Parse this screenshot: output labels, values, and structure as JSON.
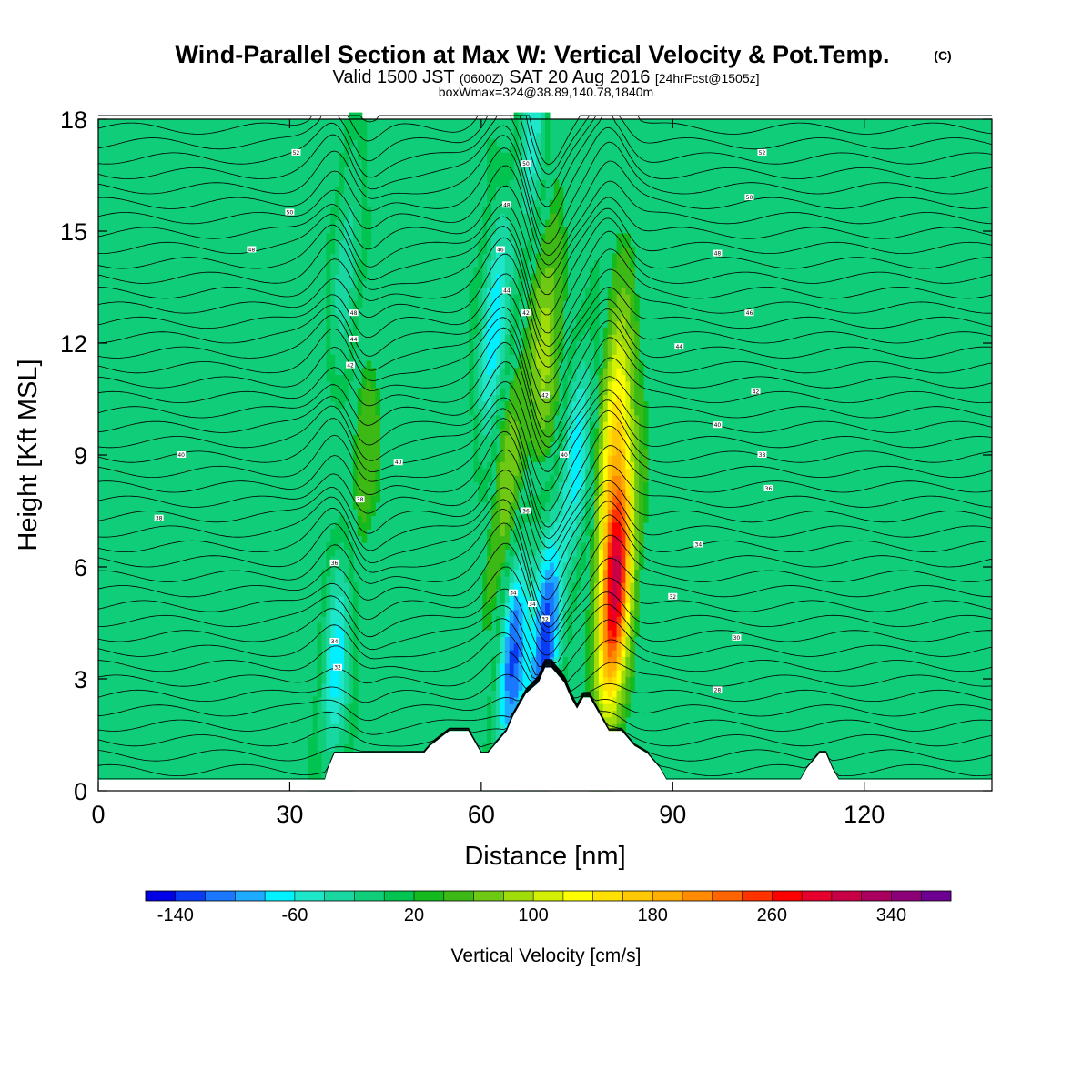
{
  "chart_data": {
    "type": "heatmap",
    "title_main": "Wind-Parallel Section at Max W: Vertical Velocity & Pot.Temp.",
    "copyright_mark": "(C)",
    "subtitle_part1": "Valid 1500 JST ",
    "subtitle_utc": "(0600Z)",
    "subtitle_part2": " SAT 20 Aug 2016 ",
    "subtitle_fcst": "[24hrFcst@1505z]",
    "subtitle_box": "boxWmax=324@38.89,140.78,1840m",
    "xlabel": "Distance [nm]",
    "ylabel": "Height [Kft MSL]",
    "xlim": [
      0,
      140
    ],
    "ylim": [
      0,
      18
    ],
    "x_ticks": [
      0,
      30,
      60,
      90,
      120
    ],
    "x_tick_labels": [
      "0",
      "30",
      "60",
      "90",
      "120"
    ],
    "y_ticks": [
      0,
      3,
      6,
      9,
      12,
      15,
      18
    ],
    "y_tick_labels": [
      "0",
      "3",
      "6",
      "9",
      "12",
      "15",
      "18"
    ],
    "background_w": 25,
    "updraft_cells": [
      {
        "x": 81,
        "y": 5.5,
        "peak": 300
      },
      {
        "x": 81,
        "y": 9.8,
        "peak": 140
      },
      {
        "x": 70,
        "y": 12,
        "peak": 90
      },
      {
        "x": 64,
        "y": 8,
        "peak": 75
      },
      {
        "x": 41,
        "y": 8.5,
        "peak": 55
      }
    ],
    "downdraft_cells": [
      {
        "x": 70,
        "y": 4,
        "peak": -130
      },
      {
        "x": 65,
        "y": 3.5,
        "peak": -120
      },
      {
        "x": 37.5,
        "y": 3.5,
        "peak": -70
      },
      {
        "x": 62,
        "y": 12.5,
        "peak": -80
      },
      {
        "x": 75,
        "y": 9,
        "peak": -65
      },
      {
        "x": 68,
        "y": 17.5,
        "peak": -45
      },
      {
        "x": 39,
        "y": 14,
        "peak": -35
      }
    ],
    "terrain": {
      "x": [
        0,
        35.5,
        36,
        37,
        51,
        52,
        55,
        58,
        59,
        60,
        61,
        64,
        65,
        66,
        67,
        69,
        70,
        71,
        73,
        74,
        75,
        76,
        77,
        78,
        79,
        80,
        82,
        83,
        84,
        86,
        87,
        88,
        89,
        90,
        110,
        111,
        113,
        114,
        115,
        116,
        117,
        140
      ],
      "h": [
        0.3,
        0.3,
        0.6,
        1.0,
        1.0,
        1.2,
        1.6,
        1.6,
        1.3,
        1.0,
        1.0,
        1.6,
        2.0,
        2.3,
        2.6,
        2.9,
        3.3,
        3.3,
        2.9,
        2.5,
        2.2,
        2.5,
        2.5,
        2.2,
        1.9,
        1.6,
        1.6,
        1.4,
        1.2,
        1.0,
        0.8,
        0.6,
        0.3,
        0.3,
        0.3,
        0.6,
        1.0,
        1.0,
        0.6,
        0.3,
        0.3,
        0.3
      ]
    },
    "theta_levels_start": 22,
    "theta_levels_step": 2,
    "theta_levels_count": 46,
    "theta_labels": [
      {
        "x": 31,
        "y": 17.1,
        "text": "52"
      },
      {
        "x": 30,
        "y": 15.5,
        "text": "50"
      },
      {
        "x": 24,
        "y": 14.5,
        "text": "48"
      },
      {
        "x": 40,
        "y": 12.8,
        "text": "48"
      },
      {
        "x": 40,
        "y": 12.1,
        "text": "44"
      },
      {
        "x": 39.5,
        "y": 11.4,
        "text": "42"
      },
      {
        "x": 13,
        "y": 9.0,
        "text": "40"
      },
      {
        "x": 47,
        "y": 8.8,
        "text": "40"
      },
      {
        "x": 9.5,
        "y": 7.3,
        "text": "38"
      },
      {
        "x": 41,
        "y": 7.8,
        "text": "38"
      },
      {
        "x": 37,
        "y": 6.1,
        "text": "36"
      },
      {
        "x": 37,
        "y": 4.0,
        "text": "34"
      },
      {
        "x": 37.5,
        "y": 3.3,
        "text": "32"
      },
      {
        "x": 67,
        "y": 16.8,
        "text": "50"
      },
      {
        "x": 64,
        "y": 15.7,
        "text": "48"
      },
      {
        "x": 63,
        "y": 14.5,
        "text": "46"
      },
      {
        "x": 64,
        "y": 13.4,
        "text": "44"
      },
      {
        "x": 67,
        "y": 12.8,
        "text": "42"
      },
      {
        "x": 70,
        "y": 10.6,
        "text": "42"
      },
      {
        "x": 73,
        "y": 9.0,
        "text": "40"
      },
      {
        "x": 67,
        "y": 7.5,
        "text": "36"
      },
      {
        "x": 65,
        "y": 5.3,
        "text": "34"
      },
      {
        "x": 68,
        "y": 5.0,
        "text": "34"
      },
      {
        "x": 70,
        "y": 4.6,
        "text": "32"
      },
      {
        "x": 104,
        "y": 17.1,
        "text": "52"
      },
      {
        "x": 102,
        "y": 15.9,
        "text": "50"
      },
      {
        "x": 97,
        "y": 14.4,
        "text": "48"
      },
      {
        "x": 102,
        "y": 12.8,
        "text": "46"
      },
      {
        "x": 91,
        "y": 11.9,
        "text": "44"
      },
      {
        "x": 103,
        "y": 10.7,
        "text": "42"
      },
      {
        "x": 97,
        "y": 9.8,
        "text": "40"
      },
      {
        "x": 104,
        "y": 9.0,
        "text": "38"
      },
      {
        "x": 105,
        "y": 8.1,
        "text": "36"
      },
      {
        "x": 94,
        "y": 6.6,
        "text": "34"
      },
      {
        "x": 90,
        "y": 5.2,
        "text": "32"
      },
      {
        "x": 100,
        "y": 4.1,
        "text": "30"
      },
      {
        "x": 97,
        "y": 2.7,
        "text": "28"
      }
    ],
    "colorbar": {
      "title": "Vertical Velocity [cm/s]",
      "min": -160,
      "step": 20,
      "tick_values": [
        -140,
        -60,
        20,
        100,
        180,
        260,
        340
      ],
      "tick_labels": [
        "-140",
        "-60",
        "20",
        "100",
        "180",
        "260",
        "340"
      ],
      "colors": [
        "#0000e6",
        "#0a3cf5",
        "#1a78ff",
        "#1eaaff",
        "#00f0ff",
        "#1ee6c8",
        "#19d7a0",
        "#0fcd78",
        "#00c350",
        "#14b91e",
        "#3cb914",
        "#6ec814",
        "#a0dc0a",
        "#d2f000",
        "#ffff00",
        "#ffe100",
        "#ffc800",
        "#ffaf00",
        "#ff8c00",
        "#ff6400",
        "#ff3200",
        "#ff0000",
        "#e6002d",
        "#c80046",
        "#aa005f",
        "#8c0078",
        "#6e0091"
      ]
    }
  }
}
